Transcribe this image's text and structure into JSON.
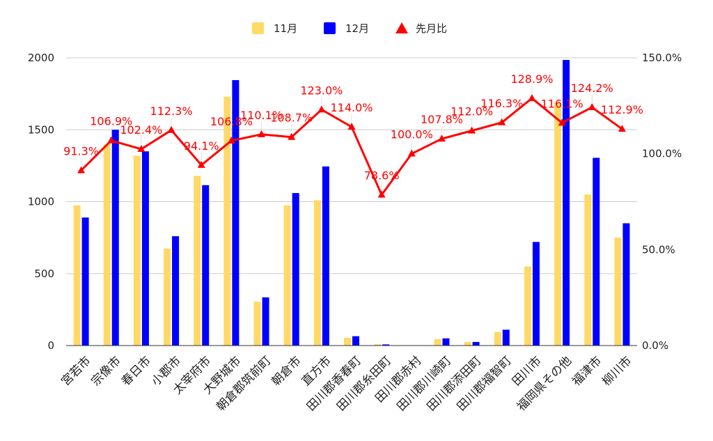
{
  "chart_data": {
    "type": "bar",
    "title": "",
    "categories": [
      "宮若市",
      "宗像市",
      "春日市",
      "小郡市",
      "太宰府市",
      "大野城市",
      "朝倉郡筑前町",
      "朝倉市",
      "直方市",
      "田川郡香春町",
      "田川郡糸田町",
      "田川郡赤村",
      "田川郡川崎町",
      "田川郡添田町",
      "田川郡福智町",
      "田川市",
      "福岡県その他",
      "福津市",
      "柳川市"
    ],
    "series": [
      {
        "name": "11月",
        "type": "bar",
        "axis": "left",
        "color": "#FFD966",
        "values": [
          975,
          1400,
          1320,
          675,
          1180,
          1730,
          305,
          975,
          1010,
          55,
          10,
          0,
          45,
          25,
          95,
          550,
          1690,
          1050,
          750
        ]
      },
      {
        "name": "12月",
        "type": "bar",
        "axis": "left",
        "color": "#0000FF",
        "values": [
          890,
          1500,
          1350,
          760,
          1115,
          1845,
          335,
          1060,
          1245,
          65,
          8,
          0,
          50,
          25,
          110,
          720,
          1985,
          1305,
          850
        ]
      },
      {
        "name": "先月比",
        "type": "line",
        "axis": "right",
        "color": "#FF0000",
        "marker": "triangle",
        "values": [
          91.3,
          106.9,
          102.4,
          112.3,
          94.1,
          106.8,
          110.1,
          108.7,
          123.0,
          114.0,
          78.6,
          100.0,
          107.8,
          112.0,
          116.3,
          128.9,
          116.1,
          124.2,
          112.9
        ],
        "labels": [
          "91.3%",
          "106.9%",
          "102.4%",
          "112.3%",
          "94.1%",
          "106.8%",
          "110.1%",
          "108.7%",
          "123.0%",
          "114.0%",
          "78.6%",
          "100.0%",
          "107.8%",
          "112.0%",
          "116.3%",
          "128.9%",
          "116.1%",
          "124.2%",
          "112.9%"
        ]
      }
    ],
    "left_axis": {
      "min": 0,
      "max": 2000,
      "ticks": [
        "0",
        "500",
        "1000",
        "1500",
        "2000"
      ]
    },
    "right_axis": {
      "min": 0,
      "max": 150,
      "ticks": [
        "0.0%",
        "50.0%",
        "100.0%",
        "150.0%"
      ]
    },
    "legend": {
      "position": "top"
    },
    "grid": true
  }
}
